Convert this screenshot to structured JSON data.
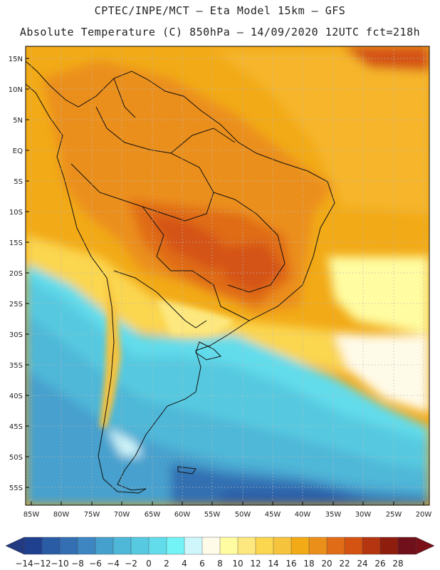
{
  "header": {
    "line1": "CPTEC/INPE/MCT –  Eta Model 15km – GFS",
    "line2": "Absolute Temperature (C) 850hPa – 14/09/2020 12UTC fct=218h"
  },
  "map": {
    "lon_range": [
      -86,
      -19
    ],
    "lat_range": [
      -59,
      17
    ],
    "lat_labels": [
      "15N",
      "10N",
      "5N",
      "EQ",
      "5S",
      "10S",
      "15S",
      "20S",
      "25S",
      "30S",
      "35S",
      "40S",
      "45S",
      "50S",
      "55S"
    ],
    "lon_labels": [
      "85W",
      "80W",
      "75W",
      "70W",
      "65W",
      "60W",
      "55W",
      "50W",
      "45W",
      "40W",
      "35W",
      "30W",
      "25W",
      "20W"
    ]
  },
  "colorbar": {
    "labels": [
      "-14",
      "-12",
      "-10",
      "-8",
      "-6",
      "-4",
      "-2",
      "0",
      "2",
      "4",
      "6",
      "8",
      "10",
      "12",
      "14",
      "16",
      "18",
      "20",
      "22",
      "24",
      "26",
      "28"
    ],
    "colors": [
      "#1f3f8f",
      "#2a5ca6",
      "#336fb2",
      "#3d86c1",
      "#46a0cd",
      "#4fb7d8",
      "#57c9e0",
      "#62dceb",
      "#74f3f6",
      "#cff6fa",
      "#fffbe9",
      "#fffca1",
      "#fde87f",
      "#fbd64f",
      "#f6c33c",
      "#f2aa17",
      "#eb8f1b",
      "#e06c17",
      "#d45312",
      "#b43510",
      "#8e1d0d",
      "#70101a"
    ],
    "under_color": "#213a82",
    "over_color": "#7a0f18"
  }
}
